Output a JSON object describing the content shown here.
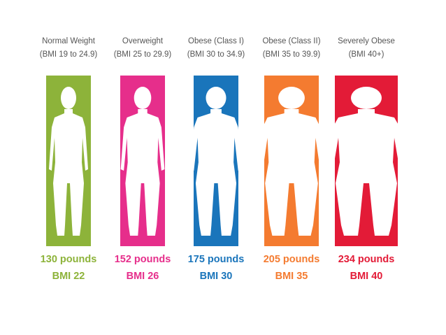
{
  "columns": [
    {
      "label": "Normal Weight",
      "range": "(BMI 19 to 24.9)",
      "weight": "130 pounds",
      "bmi": "BMI 22"
    },
    {
      "label": "Overweight",
      "range": "(BMI 25 to 29.9)",
      "weight": "152 pounds",
      "bmi": "BMI 26"
    },
    {
      "label": "Obese (Class I)",
      "range": "(BMI 30 to 34.9)",
      "weight": "175 pounds",
      "bmi": "BMI 30"
    },
    {
      "label": "Obese (Class II)",
      "range": "(BMI 35 to 39.9)",
      "weight": "205 pounds",
      "bmi": "BMI 35"
    },
    {
      "label": "Severely Obese",
      "range": "(BMI 40+)",
      "weight": "234 pounds",
      "bmi": "BMI 40"
    }
  ]
}
